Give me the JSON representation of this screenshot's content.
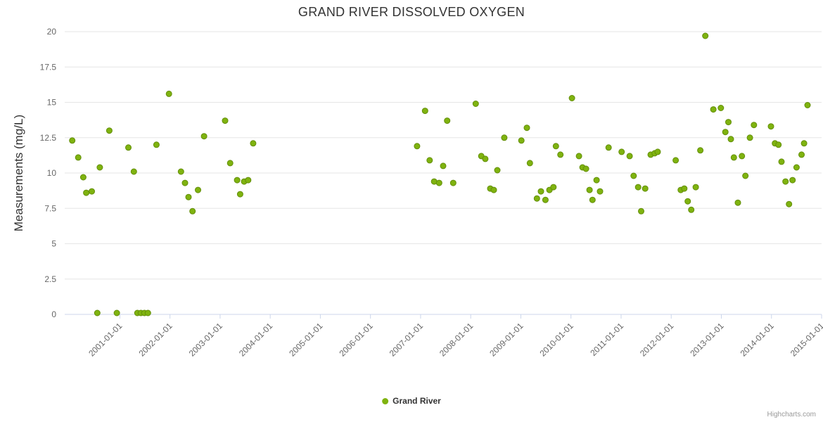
{
  "title": "GRAND RIVER DISSOLVED OXYGEN",
  "y_axis": {
    "title": "Measurements (mg/L)",
    "ticks": [
      0,
      2.5,
      5,
      7.5,
      10,
      12.5,
      15,
      17.5,
      20
    ],
    "labels": [
      "0",
      "2.5",
      "5",
      "7.5",
      "10",
      "12.5",
      "15",
      "17.5",
      "20"
    ]
  },
  "x_axis": {
    "ticks": [
      2001,
      2002,
      2003,
      2004,
      2005,
      2006,
      2007,
      2008,
      2009,
      2010,
      2011,
      2012,
      2013,
      2014,
      2015
    ],
    "labels": [
      "2001-01-01",
      "2002-01-01",
      "2003-01-01",
      "2004-01-01",
      "2005-01-01",
      "2006-01-01",
      "2007-01-01",
      "2008-01-01",
      "2009-01-01",
      "2010-01-01",
      "2011-01-01",
      "2012-01-01",
      "2013-01-01",
      "2014-01-01",
      "2015-01-01"
    ]
  },
  "legend": {
    "label": "Grand River"
  },
  "credits": "Highcharts.com",
  "colors": {
    "point": "#7fb30f",
    "point_border": "#638e0a",
    "grid": "#e6e6e6",
    "axis_line": "#ccd6eb",
    "axis_label": "#666666",
    "title": "#333333",
    "credits": "#999999"
  },
  "chart_data": {
    "type": "scatter",
    "title": "GRAND RIVER DISSOLVED OXYGEN",
    "xlabel": "",
    "ylabel": "Measurements (mg/L)",
    "xlim": [
      1999.9,
      2015.0
    ],
    "ylim": [
      0,
      20
    ],
    "grid": "horizontal-only",
    "legend_position": "bottom-center",
    "series": [
      {
        "name": "Grand River",
        "points": [
          [
            2000.05,
            12.3
          ],
          [
            2000.17,
            11.1
          ],
          [
            2000.27,
            9.7
          ],
          [
            2000.33,
            8.6
          ],
          [
            2000.44,
            8.7
          ],
          [
            2000.55,
            0.1
          ],
          [
            2000.6,
            10.4
          ],
          [
            2000.79,
            13.0
          ],
          [
            2000.94,
            0.1
          ],
          [
            2001.17,
            11.8
          ],
          [
            2001.28,
            10.1
          ],
          [
            2001.35,
            0.1
          ],
          [
            2001.42,
            0.1
          ],
          [
            2001.49,
            0.1
          ],
          [
            2001.56,
            0.1
          ],
          [
            2001.73,
            12.0
          ],
          [
            2001.98,
            15.6
          ],
          [
            2002.22,
            10.1
          ],
          [
            2002.3,
            9.3
          ],
          [
            2002.37,
            8.3
          ],
          [
            2002.45,
            7.3
          ],
          [
            2002.56,
            8.8
          ],
          [
            2002.68,
            12.6
          ],
          [
            2003.1,
            13.7
          ],
          [
            2003.2,
            10.7
          ],
          [
            2003.34,
            9.5
          ],
          [
            2003.4,
            8.5
          ],
          [
            2003.48,
            9.4
          ],
          [
            2003.56,
            9.5
          ],
          [
            2003.66,
            12.1
          ],
          [
            2006.93,
            11.9
          ],
          [
            2007.09,
            14.4
          ],
          [
            2007.18,
            10.9
          ],
          [
            2007.27,
            9.4
          ],
          [
            2007.37,
            9.3
          ],
          [
            2007.45,
            10.5
          ],
          [
            2007.53,
            13.7
          ],
          [
            2007.65,
            9.3
          ],
          [
            2008.1,
            14.9
          ],
          [
            2008.21,
            11.2
          ],
          [
            2008.29,
            11.0
          ],
          [
            2008.39,
            8.9
          ],
          [
            2008.46,
            8.8
          ],
          [
            2008.53,
            10.2
          ],
          [
            2008.67,
            12.5
          ],
          [
            2009.01,
            12.3
          ],
          [
            2009.12,
            13.2
          ],
          [
            2009.18,
            10.7
          ],
          [
            2009.32,
            8.2
          ],
          [
            2009.4,
            8.7
          ],
          [
            2009.49,
            8.1
          ],
          [
            2009.57,
            8.8
          ],
          [
            2009.65,
            9.0
          ],
          [
            2009.7,
            11.9
          ],
          [
            2009.79,
            11.3
          ],
          [
            2010.02,
            15.3
          ],
          [
            2010.16,
            11.2
          ],
          [
            2010.23,
            10.4
          ],
          [
            2010.3,
            10.3
          ],
          [
            2010.37,
            8.8
          ],
          [
            2010.43,
            8.1
          ],
          [
            2010.51,
            9.5
          ],
          [
            2010.58,
            8.7
          ],
          [
            2010.75,
            11.8
          ],
          [
            2011.01,
            11.5
          ],
          [
            2011.17,
            11.2
          ],
          [
            2011.25,
            9.8
          ],
          [
            2011.34,
            9.0
          ],
          [
            2011.4,
            7.3
          ],
          [
            2011.48,
            8.9
          ],
          [
            2011.59,
            11.3
          ],
          [
            2011.67,
            11.4
          ],
          [
            2011.73,
            11.5
          ],
          [
            2012.09,
            10.9
          ],
          [
            2012.19,
            8.8
          ],
          [
            2012.26,
            8.9
          ],
          [
            2012.33,
            8.0
          ],
          [
            2012.4,
            7.4
          ],
          [
            2012.49,
            9.0
          ],
          [
            2012.58,
            11.6
          ],
          [
            2012.68,
            19.7
          ],
          [
            2012.84,
            14.5
          ],
          [
            2012.99,
            14.6
          ],
          [
            2013.08,
            12.9
          ],
          [
            2013.14,
            13.6
          ],
          [
            2013.19,
            12.4
          ],
          [
            2013.25,
            11.1
          ],
          [
            2013.33,
            7.9
          ],
          [
            2013.41,
            11.2
          ],
          [
            2013.48,
            9.8
          ],
          [
            2013.57,
            12.5
          ],
          [
            2013.65,
            13.4
          ],
          [
            2013.99,
            13.3
          ],
          [
            2014.07,
            12.1
          ],
          [
            2014.14,
            12.0
          ],
          [
            2014.2,
            10.8
          ],
          [
            2014.28,
            9.4
          ],
          [
            2014.35,
            7.8
          ],
          [
            2014.42,
            9.5
          ],
          [
            2014.5,
            10.4
          ],
          [
            2014.6,
            11.3
          ],
          [
            2014.65,
            12.1
          ],
          [
            2014.72,
            14.8
          ]
        ]
      }
    ]
  }
}
